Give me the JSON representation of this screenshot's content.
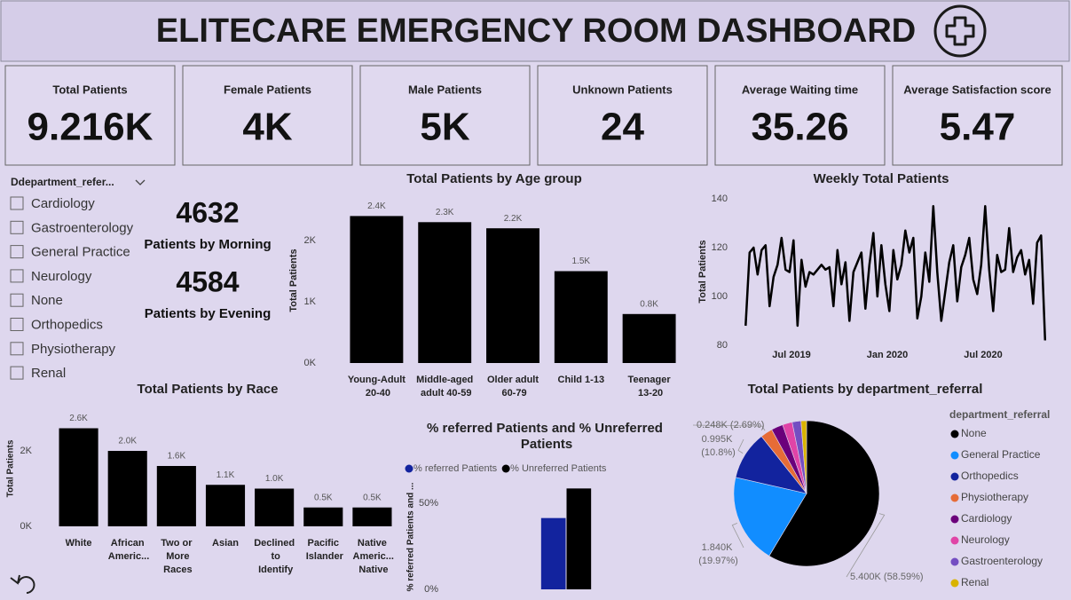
{
  "header": {
    "title": "ELITECARE EMERGENCY ROOM DASHBOARD"
  },
  "kpis": [
    {
      "label": "Total Patients",
      "value": "9.216K"
    },
    {
      "label": "Female Patients",
      "value": "4K"
    },
    {
      "label": "Male Patients",
      "value": "5K"
    },
    {
      "label": "Unknown Patients",
      "value": "24"
    },
    {
      "label": "Average Waiting time",
      "value": "35.26"
    },
    {
      "label": "Average Satisfaction score",
      "value": "5.47"
    }
  ],
  "slicer": {
    "title": "Ddepartment_refer...",
    "items": [
      "Cardiology",
      "Gastroenterology",
      "General Practice",
      "Neurology",
      "None",
      "Orthopedics",
      "Physiotherapy",
      "Renal"
    ]
  },
  "shifts": [
    {
      "value": "4632",
      "label": "Patients by Morning"
    },
    {
      "value": "4584",
      "label": "Patients by Evening"
    }
  ],
  "chart_data": [
    {
      "type": "bar",
      "title": "Total Patients by Age group",
      "y_label": "Total Patients",
      "categories": [
        "Young-Adult 20-40",
        "Middle-aged adult 40-59",
        "Older adult 60-79",
        "Child 1-13",
        "Teenager 13-20"
      ],
      "values": [
        2400,
        2300,
        2200,
        1500,
        800
      ],
      "value_labels": [
        "2.4K",
        "2.3K",
        "2.2K",
        "1.5K",
        "0.8K"
      ],
      "color": "#000000",
      "ylim": [
        0,
        2500
      ],
      "yticks": [
        {
          "value": 0,
          "label": "0K"
        },
        {
          "value": 1000,
          "label": "1K"
        },
        {
          "value": 2000,
          "label": "2K"
        }
      ],
      "grid": false
    },
    {
      "type": "bar",
      "title": "Total Patients by Race",
      "y_label": "Total Patients",
      "categories": [
        "White",
        "African Americ...",
        "Two or More Races",
        "Asian",
        "Declined to Identify",
        "Pacific Islander",
        "Native Americ... Native"
      ],
      "values": [
        2600,
        2000,
        1600,
        1100,
        1000,
        500,
        500
      ],
      "value_labels": [
        "2.6K",
        "2.0K",
        "1.6K",
        "1.1K",
        "1.0K",
        "0.5K",
        "0.5K"
      ],
      "color": "#000000",
      "ylim": [
        0,
        3000
      ],
      "yticks": [
        {
          "value": 0,
          "label": "0K"
        },
        {
          "value": 2000,
          "label": "2K"
        }
      ],
      "grid": false
    },
    {
      "type": "line",
      "title": "Weekly Total Patients",
      "y_label": "Total Patients",
      "color": "#000000",
      "x": [
        "2019-04",
        "2019-04",
        "2019-04",
        "2019-04",
        "2019-05",
        "2019-05",
        "2019-05",
        "2019-05",
        "2019-06",
        "2019-06",
        "2019-06",
        "2019-06",
        "2019-07",
        "2019-07",
        "2019-07",
        "2019-07",
        "2019-08",
        "2019-08",
        "2019-08",
        "2019-08",
        "2019-09",
        "2019-09",
        "2019-09",
        "2019-09",
        "2019-10",
        "2019-10",
        "2019-10",
        "2019-10",
        "2019-11",
        "2019-11",
        "2019-11",
        "2019-11",
        "2019-12",
        "2019-12",
        "2019-12",
        "2019-12",
        "2020-01",
        "2020-01",
        "2020-01",
        "2020-01",
        "2020-02",
        "2020-02",
        "2020-02",
        "2020-02",
        "2020-03",
        "2020-03",
        "2020-03",
        "2020-03",
        "2020-04",
        "2020-04",
        "2020-04",
        "2020-04",
        "2020-05",
        "2020-05",
        "2020-05",
        "2020-05",
        "2020-06",
        "2020-06",
        "2020-06",
        "2020-06",
        "2020-07",
        "2020-07",
        "2020-07",
        "2020-07",
        "2020-08",
        "2020-08",
        "2020-08",
        "2020-08",
        "2020-09",
        "2020-09",
        "2020-09",
        "2020-09",
        "2020-10",
        "2020-10",
        "2020-10",
        "2020-10"
      ],
      "values": [
        88,
        118,
        120,
        109,
        119,
        121,
        96,
        108,
        113,
        124,
        111,
        110,
        123,
        88,
        115,
        104,
        110,
        109,
        111,
        113,
        111,
        112,
        96,
        119,
        105,
        114,
        90,
        110,
        114,
        118,
        95,
        113,
        126,
        100,
        121,
        105,
        94,
        119,
        107,
        113,
        127,
        118,
        124,
        91,
        100,
        118,
        106,
        137,
        110,
        90,
        102,
        114,
        121,
        98,
        112,
        117,
        124,
        107,
        101,
        113,
        137,
        111,
        94,
        117,
        110,
        111,
        128,
        110,
        116,
        119,
        109,
        115,
        97,
        122,
        125,
        82
      ],
      "xlim": [
        "2019-04",
        "2020-11"
      ],
      "xticks": [
        {
          "value": "2019-07",
          "label": "Jul 2019"
        },
        {
          "value": "2020-01",
          "label": "Jan 2020"
        },
        {
          "value": "2020-07",
          "label": "Jul 2020"
        }
      ],
      "ylim": [
        80,
        140
      ],
      "yticks": [
        80,
        100,
        120,
        140
      ],
      "grid": false
    },
    {
      "type": "pie",
      "title": "Total Patients by department_referral",
      "legend_title": "department_referral",
      "categories": [
        "None",
        "General Practice",
        "Orthopedics",
        "Physiotherapy",
        "Cardiology",
        "Neurology",
        "Gastroenterology",
        "Renal"
      ],
      "values": [
        5400,
        1840,
        995,
        248,
        240,
        200,
        180,
        113
      ],
      "value_labels": [
        "5.400K (58.59%)",
        "1.840K (19.97%)",
        "0.995K (10.8%)",
        "0.248K (2.69%)",
        null,
        null,
        null,
        null
      ],
      "colors": [
        "#000000",
        "#118dff",
        "#12239e",
        "#e66c37",
        "#6b007b",
        "#e044a7",
        "#744ec2",
        "#d9b300"
      ]
    },
    {
      "type": "bar",
      "title": "% referred Patients and % Unreferred Patients",
      "y_label": "% referred Patients and ...",
      "categories": [
        null
      ],
      "series": [
        {
          "name": "% referred Patients",
          "color": "#12239e",
          "values": [
            41.41
          ]
        },
        {
          "name": "% Unreferred Patients",
          "color": "#000000",
          "values": [
            58.59
          ]
        }
      ],
      "ylim": [
        0,
        60
      ],
      "yticks": [
        {
          "value": 0,
          "label": "0%"
        },
        {
          "value": 50,
          "label": "50%"
        }
      ],
      "grid": false
    }
  ]
}
